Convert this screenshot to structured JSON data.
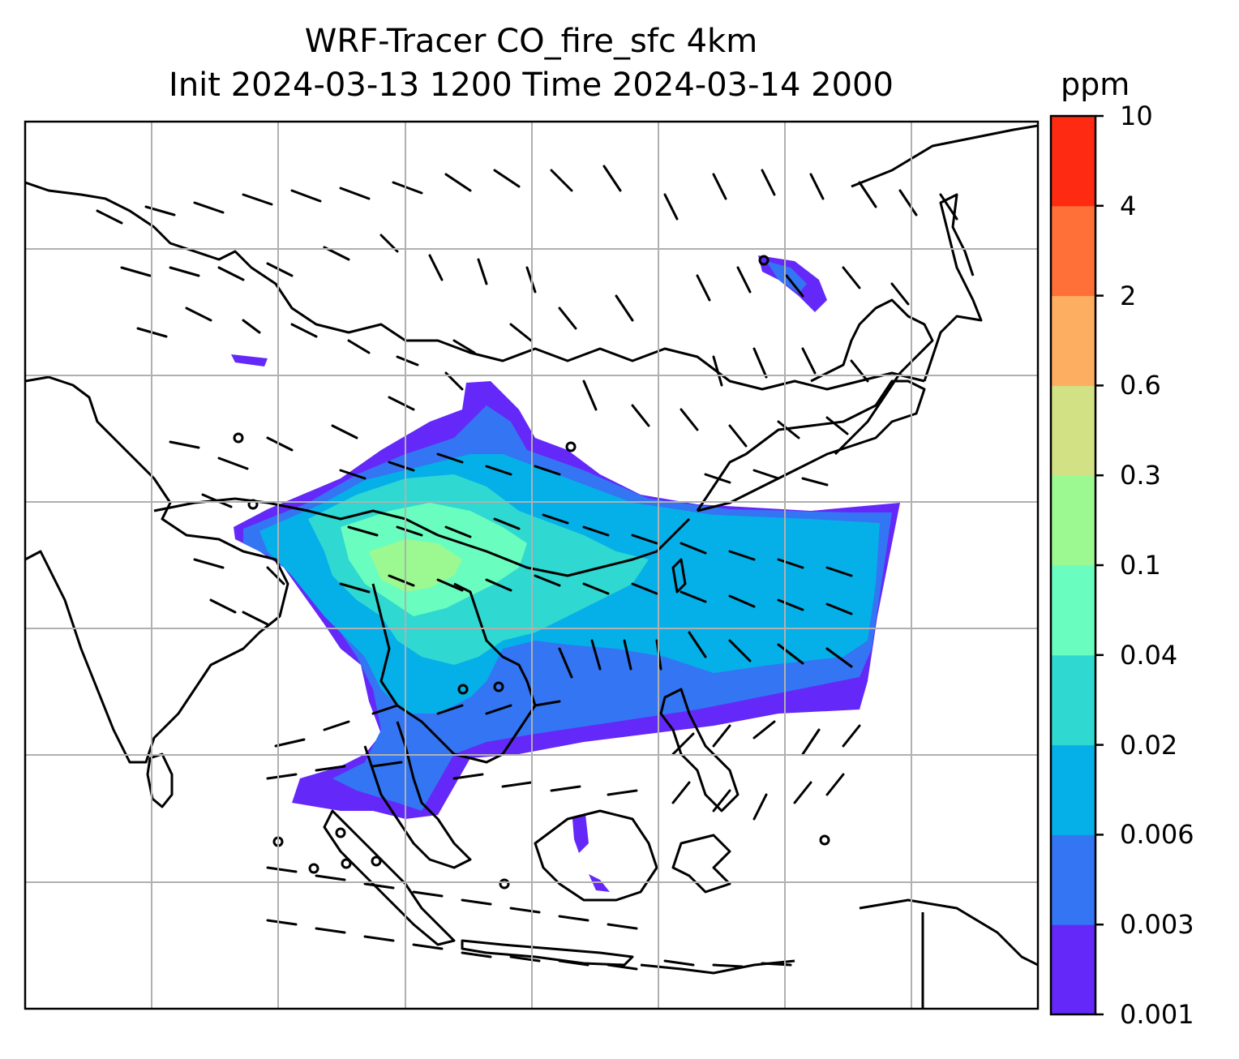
{
  "title": {
    "line1": "WRF-Tracer CO_fire_sfc 4km",
    "line2": "Init 2024-03-13 1200 Time 2024-03-14 2000"
  },
  "colorbar": {
    "unit": "ppm",
    "ticks": [
      "0.001",
      "0.003",
      "0.006",
      "0.02",
      "0.04",
      "0.1",
      "0.3",
      "0.6",
      "2",
      "4",
      "10"
    ],
    "colors": [
      "#6429f9",
      "#3475f3",
      "#05b0e8",
      "#2fd8d0",
      "#69fdbf",
      "#9cf991",
      "#d2e183",
      "#feae60",
      "#fe7038",
      "#fe2a12"
    ]
  },
  "map": {
    "gridlines": true,
    "gridline_color": "#b0b0b0",
    "coastline_color": "#000000",
    "field": "CO_fire_sfc",
    "overlay": "wind barbs"
  }
}
